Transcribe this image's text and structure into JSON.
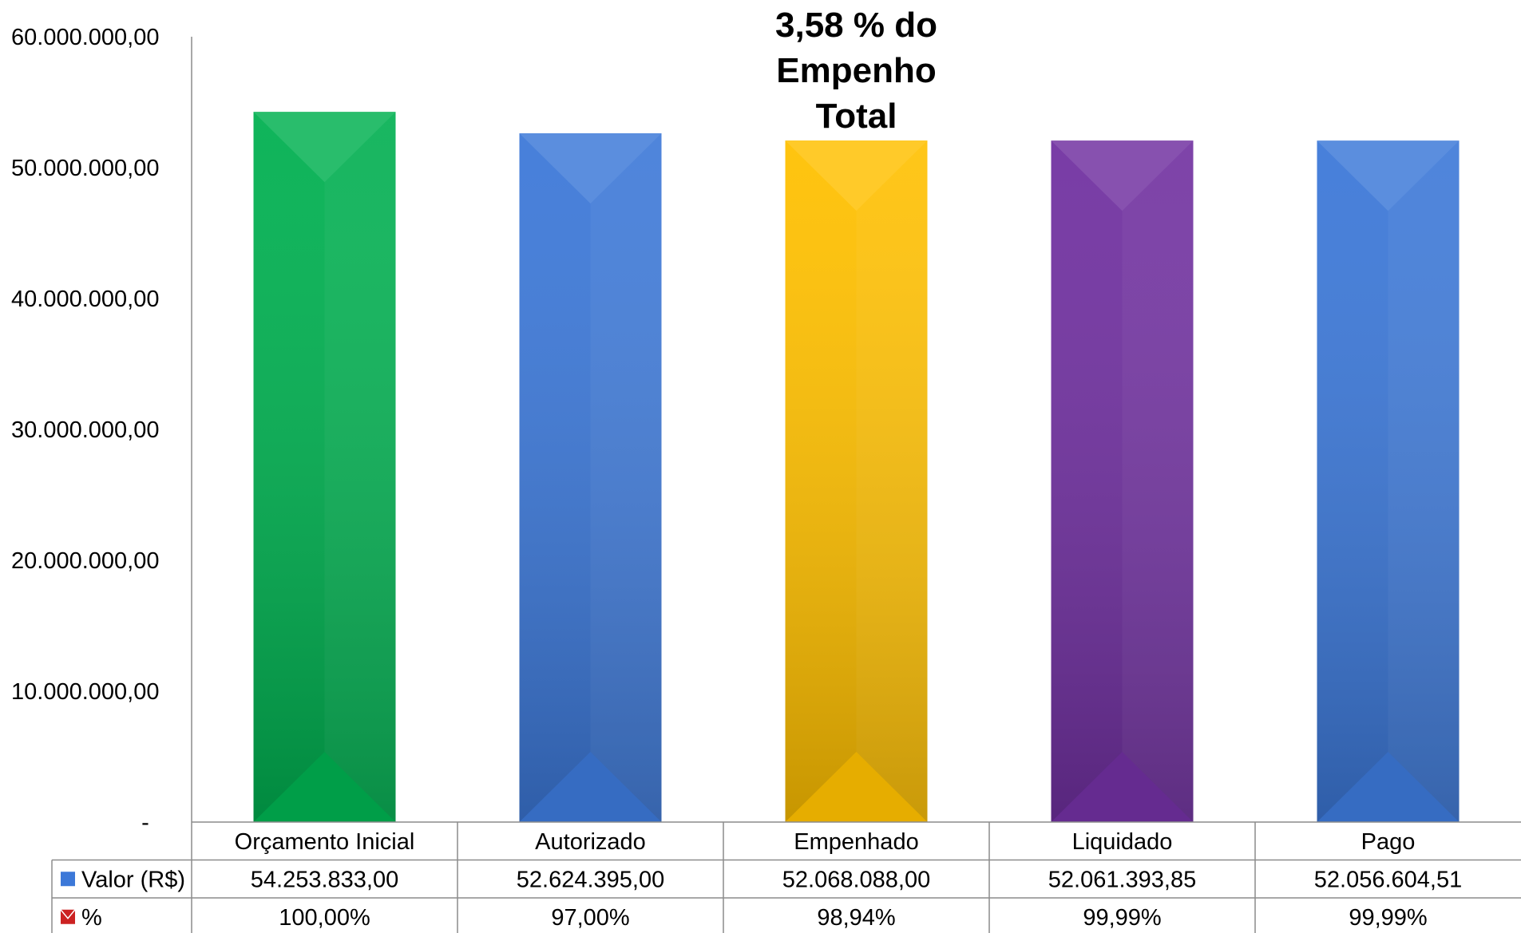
{
  "chart_data": {
    "type": "bar",
    "categories": [
      "Orçamento Inicial",
      "Autorizado",
      "Empenhado",
      "Liquidado",
      "Pago"
    ],
    "series": [
      {
        "name": "Valor (R$)",
        "values": [
          54253833.0,
          52624395.0,
          52068088.0,
          52061393.85,
          52056604.51
        ],
        "value_labels": [
          "54.253.833,00",
          "52.624.395,00",
          "52.068.088,00",
          "52.061.393,85",
          "52.056.604,51"
        ],
        "legend_color": "#3c78d8"
      },
      {
        "name": "%",
        "values": [
          100.0,
          97.0,
          98.94,
          99.99,
          99.99
        ],
        "value_labels": [
          "100,00%",
          "97,00%",
          "98,94%",
          "99,99%",
          "99,99%"
        ],
        "legend_color": "#cc2222"
      }
    ],
    "bar_colors": [
      "#00b050",
      "#3c78d8",
      "#ffc000",
      "#7030a0",
      "#3c78d8"
    ],
    "ylim": [
      0,
      60000000
    ],
    "yticks": [
      0,
      10000000,
      20000000,
      30000000,
      40000000,
      50000000,
      60000000
    ],
    "ytick_labels": [
      "-",
      "10.000.000,00",
      "20.000.000,00",
      "30.000.000,00",
      "40.000.000,00",
      "50.000.000,00",
      "60.000.000,00"
    ],
    "data_table": true,
    "annotation": {
      "lines": [
        "3,58 % do",
        "Empenho",
        "Total"
      ],
      "category_index": 2
    },
    "grid": false
  }
}
